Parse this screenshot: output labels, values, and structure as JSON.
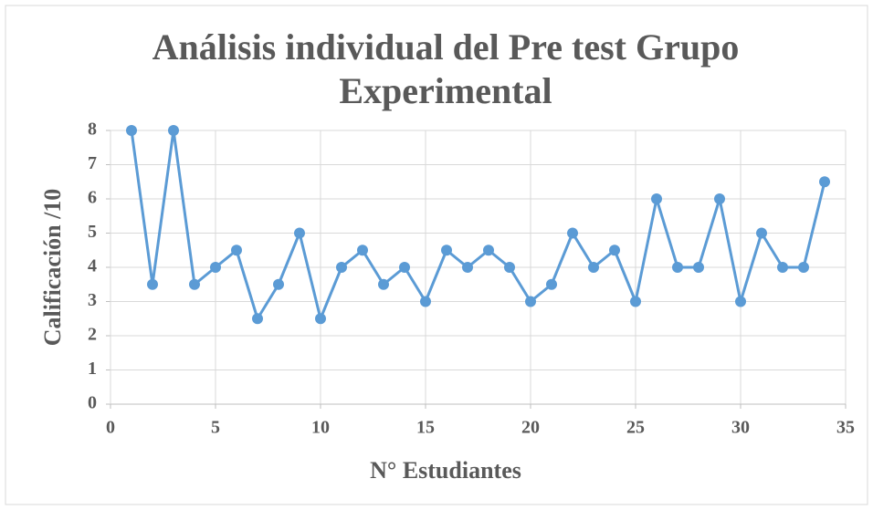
{
  "chart_data": {
    "type": "line",
    "title": "Análisis individual del Pre test Grupo Experimental",
    "x_label": "N° Estudiantes",
    "y_label": "Calificación /10",
    "x": [
      1,
      2,
      3,
      4,
      5,
      6,
      7,
      8,
      9,
      10,
      11,
      12,
      13,
      14,
      15,
      16,
      17,
      18,
      19,
      20,
      21,
      22,
      23,
      24,
      25,
      26,
      27,
      28,
      29,
      30,
      31,
      32,
      33,
      34
    ],
    "series": [
      {
        "name": "Calificación",
        "color": "#5b9bd5",
        "values": [
          8,
          3.5,
          8,
          3.5,
          4,
          4.5,
          2.5,
          3.5,
          5,
          2.5,
          4,
          4.5,
          3.5,
          4,
          3,
          4.5,
          4,
          4.5,
          4,
          3,
          3.5,
          5,
          4,
          4.5,
          3,
          6,
          4,
          4,
          6,
          3,
          5,
          4,
          4,
          6.5
        ]
      }
    ],
    "xlim": [
      0,
      35
    ],
    "xticks": [
      0,
      5,
      10,
      15,
      20,
      25,
      30,
      35
    ],
    "ylim": [
      0,
      8
    ],
    "yticks": [
      0,
      1,
      2,
      3,
      4,
      5,
      6,
      7,
      8
    ],
    "grid": true
  }
}
